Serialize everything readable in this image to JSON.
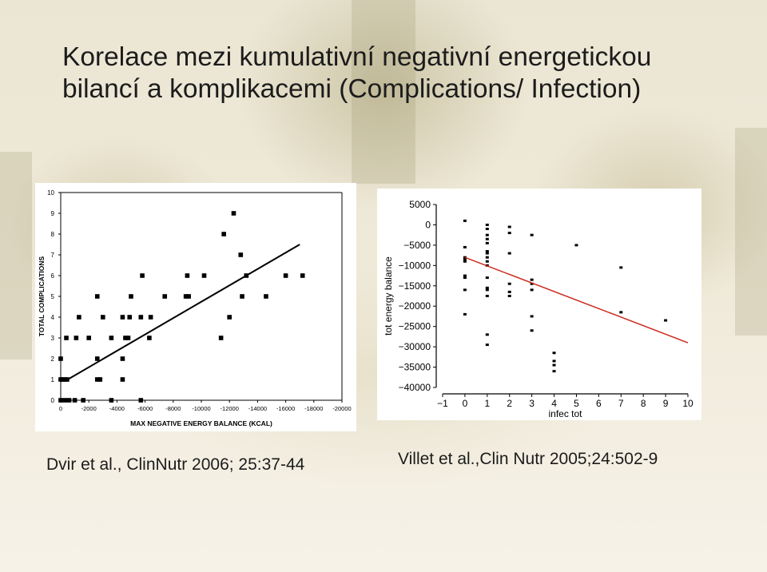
{
  "title": {
    "line1": "Korelace mezi kumulativní negativní energetickou",
    "line2": "bilancí a komplikacemi (Complications/ Infection)"
  },
  "citations": {
    "left": "Dvir et al., ClinNutr 2006; 25:37-44",
    "right": "Villet et al.,Clin Nutr 2005;24:502-9"
  },
  "chart_data": [
    {
      "type": "scatter",
      "title": "",
      "xlabel": "MAX NEGATIVE ENERGY BALANCE (KCAL)",
      "ylabel": "TOTAL COMPLICATIONS",
      "xlim": [
        0,
        -20000
      ],
      "ylim": [
        0,
        10
      ],
      "xticks": [
        0,
        -2000,
        -4000,
        -6000,
        -8000,
        -10000,
        -12000,
        -14000,
        -16000,
        -18000,
        -20000
      ],
      "yticks": [
        0,
        1,
        2,
        3,
        4,
        5,
        6,
        7,
        8,
        9,
        10
      ],
      "grid": false,
      "marker_color": "#000000",
      "line_color": "#000000",
      "points": [
        [
          0,
          0
        ],
        [
          -300,
          0
        ],
        [
          -600,
          0
        ],
        [
          -1000,
          0
        ],
        [
          -1600,
          0
        ],
        [
          -3600,
          0
        ],
        [
          -5700,
          0
        ],
        [
          0,
          1
        ],
        [
          -150,
          1
        ],
        [
          -300,
          1
        ],
        [
          -450,
          1
        ],
        [
          -2600,
          1
        ],
        [
          -2800,
          1
        ],
        [
          -4400,
          1
        ],
        [
          0,
          2
        ],
        [
          -2600,
          2
        ],
        [
          -4400,
          2
        ],
        [
          -400,
          3
        ],
        [
          -1100,
          3
        ],
        [
          -2000,
          3
        ],
        [
          -3600,
          3
        ],
        [
          -4600,
          3
        ],
        [
          -4800,
          3
        ],
        [
          -6300,
          3
        ],
        [
          -11400,
          3
        ],
        [
          -1300,
          4
        ],
        [
          -3000,
          4
        ],
        [
          -4400,
          4
        ],
        [
          -4900,
          4
        ],
        [
          -5700,
          4
        ],
        [
          -6400,
          4
        ],
        [
          -12000,
          4
        ],
        [
          -2600,
          5
        ],
        [
          -5000,
          5
        ],
        [
          -7400,
          5
        ],
        [
          -8900,
          5
        ],
        [
          -9100,
          5
        ],
        [
          -12900,
          5
        ],
        [
          -14600,
          5
        ],
        [
          -5800,
          6
        ],
        [
          -9000,
          6
        ],
        [
          -10200,
          6
        ],
        [
          -13200,
          6
        ],
        [
          -16000,
          6
        ],
        [
          -17200,
          6
        ],
        [
          -12800,
          7
        ],
        [
          -11600,
          8
        ],
        [
          -12300,
          9
        ]
      ],
      "trendline": {
        "x": [
          -500,
          -17000
        ],
        "y": [
          1.0,
          7.5
        ]
      }
    },
    {
      "type": "scatter",
      "title": "",
      "xlabel": "infec tot",
      "ylabel": "tot energy balance",
      "xlim": [
        -1,
        10
      ],
      "ylim": [
        -40000,
        5000
      ],
      "xticks": [
        -1,
        0,
        1,
        2,
        3,
        4,
        5,
        6,
        7,
        8,
        9,
        10
      ],
      "yticks": [
        5000,
        0,
        -5000,
        -10000,
        -15000,
        -20000,
        -25000,
        -30000,
        -35000,
        -40000
      ],
      "ytick_labels": [
        "5000",
        "0",
        "−5000",
        "−10000",
        "−15000",
        "−20000",
        "−25000",
        "−30000",
        "−35000",
        "−40000"
      ],
      "xtick_labels": [
        "−1",
        "0",
        "1",
        "2",
        "3",
        "4",
        "5",
        "6",
        "7",
        "8",
        "9",
        "10"
      ],
      "grid": false,
      "marker_color": "#000000",
      "line_color": "#cc2a1e",
      "points": [
        [
          0,
          1000
        ],
        [
          0,
          -5500
        ],
        [
          0,
          -8000
        ],
        [
          0,
          -8500
        ],
        [
          0,
          -9000
        ],
        [
          0,
          -12500
        ],
        [
          0,
          -13000
        ],
        [
          0,
          -16000
        ],
        [
          0,
          -22000
        ],
        [
          1,
          0
        ],
        [
          1,
          -1000
        ],
        [
          1,
          -2500
        ],
        [
          1,
          -3500
        ],
        [
          1,
          -4500
        ],
        [
          1,
          -6500
        ],
        [
          1,
          -7000
        ],
        [
          1,
          -8000
        ],
        [
          1,
          -9000
        ],
        [
          1,
          -10000
        ],
        [
          1,
          -13000
        ],
        [
          1,
          -15500
        ],
        [
          1,
          -16000
        ],
        [
          1,
          -17500
        ],
        [
          1,
          -27000
        ],
        [
          1,
          -29500
        ],
        [
          2,
          -500
        ],
        [
          2,
          -2000
        ],
        [
          2,
          -7000
        ],
        [
          2,
          -14500
        ],
        [
          2,
          -16500
        ],
        [
          2,
          -17500
        ],
        [
          3,
          -2500
        ],
        [
          3,
          -13500
        ],
        [
          3,
          -14500
        ],
        [
          3,
          -16000
        ],
        [
          3,
          -22500
        ],
        [
          3,
          -26000
        ],
        [
          4,
          -31500
        ],
        [
          4,
          -33500
        ],
        [
          4,
          -34500
        ],
        [
          4,
          -36000
        ],
        [
          5,
          -5000
        ],
        [
          7,
          -10500
        ],
        [
          7,
          -21500
        ],
        [
          9,
          -23500
        ]
      ],
      "trendline": {
        "x": [
          0,
          10
        ],
        "y": [
          -8000,
          -29000
        ]
      }
    }
  ]
}
